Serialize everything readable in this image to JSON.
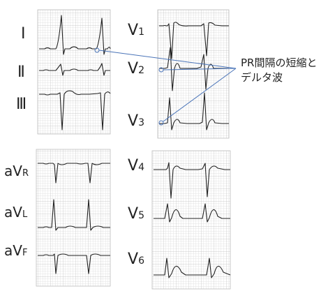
{
  "leads": {
    "I": "Ⅰ",
    "II": "Ⅱ",
    "III": "Ⅲ",
    "aVR": "aV",
    "aVR_sub": "R",
    "aVL": "aV",
    "aVL_sub": "L",
    "aVF": "aV",
    "aVF_sub": "F",
    "V1": "V",
    "V1_sub": "1",
    "V2": "V",
    "V2_sub": "2",
    "V3": "V",
    "V3_sub": "3",
    "V4": "V",
    "V4_sub": "4",
    "V5": "V",
    "V5_sub": "5",
    "V6": "V",
    "V6_sub": "6"
  },
  "annotation": {
    "line1": "PR間隔の短縮と",
    "line2": "デルタ波"
  },
  "colors": {
    "grid_minor": "#e3e3e3",
    "grid_major": "#bdbdbd",
    "trace": "#222222",
    "pointer": "#4a74b8"
  }
}
